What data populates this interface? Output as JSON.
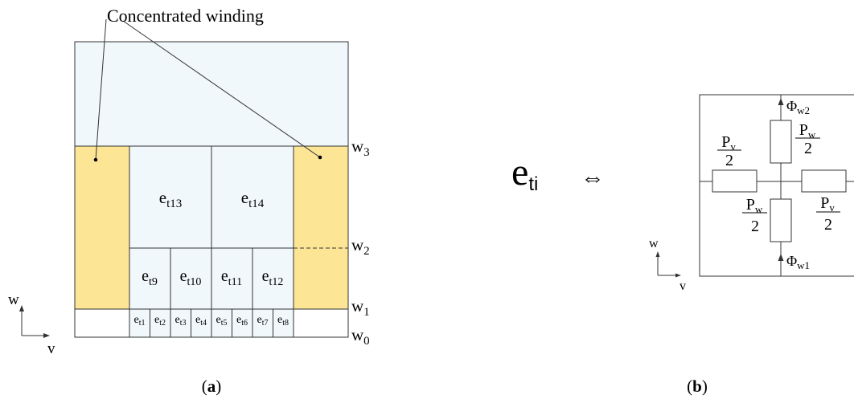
{
  "panel_a": {
    "annotation": "Concentrated winding",
    "caption_open": "(",
    "caption_letter": "a",
    "caption_close": ")",
    "colors": {
      "air": "#f1f8fc",
      "winding": "#fde596",
      "stroke": "#333333",
      "white": "#ffffff"
    },
    "elements": {
      "t1": {
        "base": "e",
        "sub": "t1"
      },
      "t2": {
        "base": "e",
        "sub": "t2"
      },
      "t3": {
        "base": "e",
        "sub": "t3"
      },
      "t4": {
        "base": "e",
        "sub": "t4"
      },
      "t5": {
        "base": "e",
        "sub": "t5"
      },
      "t6": {
        "base": "e",
        "sub": "t6"
      },
      "t7": {
        "base": "e",
        "sub": "t7"
      },
      "t8": {
        "base": "e",
        "sub": "t8"
      },
      "t9": {
        "base": "e",
        "sub": "t9"
      },
      "t10": {
        "base": "e",
        "sub": "t10"
      },
      "t11": {
        "base": "e",
        "sub": "t11"
      },
      "t12": {
        "base": "e",
        "sub": "t12"
      },
      "t13": {
        "base": "e",
        "sub": "t13"
      },
      "t14": {
        "base": "e",
        "sub": "t14"
      }
    },
    "levels": {
      "w3": {
        "base": "w",
        "sub": "3"
      },
      "w2": {
        "base": "w",
        "sub": "2"
      },
      "w1": {
        "base": "w",
        "sub": "1"
      },
      "w0": {
        "base": "w",
        "sub": "0"
      }
    },
    "axis": {
      "vertical": "w",
      "horizontal": "v"
    }
  },
  "equivalence": {
    "base": "e",
    "sub": "ti",
    "symbol": "⇔"
  },
  "panel_b": {
    "caption_open": "(",
    "caption_letter": "b",
    "caption_close": ")",
    "phi_top": {
      "base": "Φ",
      "sub": "w2"
    },
    "phi_bottom": {
      "base": "Φ",
      "sub": "w1"
    },
    "pv_top": {
      "base": "P",
      "sub": "v",
      "den": "2"
    },
    "pw_top": {
      "base": "P",
      "sub": "w",
      "den": "2"
    },
    "pw_bottom": {
      "base": "P",
      "sub": "w",
      "den": "2"
    },
    "pv_bottom": {
      "base": "P",
      "sub": "v",
      "den": "2"
    },
    "axis": {
      "vertical": "w",
      "horizontal": "v"
    }
  }
}
